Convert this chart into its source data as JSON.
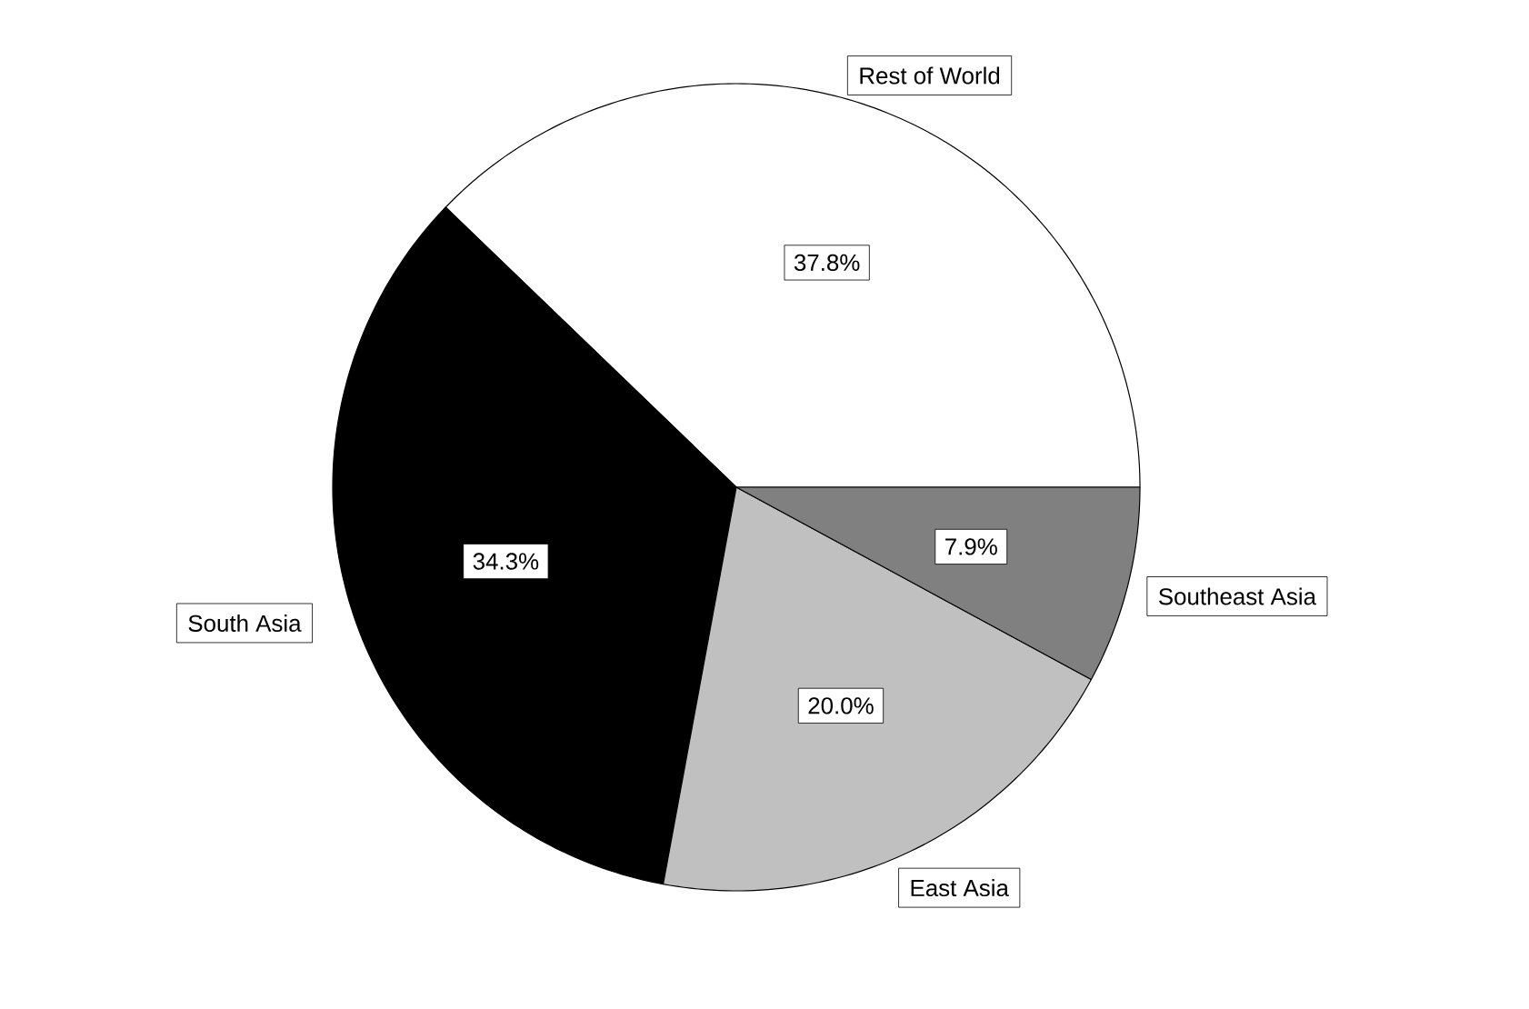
{
  "chart_data": {
    "type": "pie",
    "categories": [
      "Rest of World",
      "South Asia",
      "East Asia",
      "Southeast Asia"
    ],
    "values": [
      37.8,
      34.3,
      20.0,
      7.9
    ],
    "colors": [
      "#ffffff",
      "#000000",
      "#c0c0c0",
      "#808080"
    ],
    "value_labels": [
      "37.8%",
      "34.3%",
      "20.0%",
      "7.9%"
    ]
  }
}
